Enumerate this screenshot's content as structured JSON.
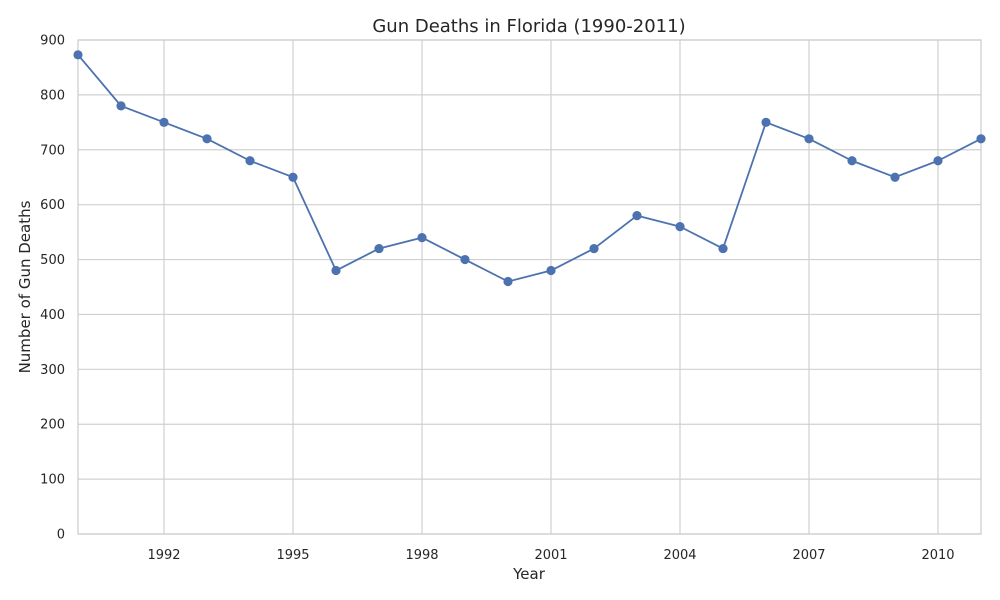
{
  "chart_data": {
    "type": "line",
    "title": "Gun Deaths in Florida (1990-2011)",
    "xlabel": "Year",
    "ylabel": "Number of Gun Deaths",
    "xlim": [
      1990,
      2011
    ],
    "ylim": [
      0,
      900
    ],
    "x_ticks": [
      1992,
      1995,
      1998,
      2001,
      2004,
      2007,
      2010
    ],
    "y_ticks": [
      0,
      100,
      200,
      300,
      400,
      500,
      600,
      700,
      800,
      900
    ],
    "grid": true,
    "legend": "none",
    "series": [
      {
        "color": "#4c72b0",
        "x": [
          1990,
          1991,
          1992,
          1993,
          1994,
          1995,
          1996,
          1997,
          1998,
          1999,
          2000,
          2001,
          2002,
          2003,
          2004,
          2005,
          2006,
          2007,
          2008,
          2009,
          2010,
          2011
        ],
        "values": [
          873,
          780,
          750,
          720,
          680,
          650,
          480,
          520,
          540,
          500,
          460,
          480,
          520,
          580,
          560,
          520,
          750,
          720,
          680,
          650,
          680,
          720
        ]
      }
    ],
    "colors": {
      "grid": "#d0d0d0",
      "axes_edge": "#cccccc",
      "background": "#ffffff"
    }
  }
}
